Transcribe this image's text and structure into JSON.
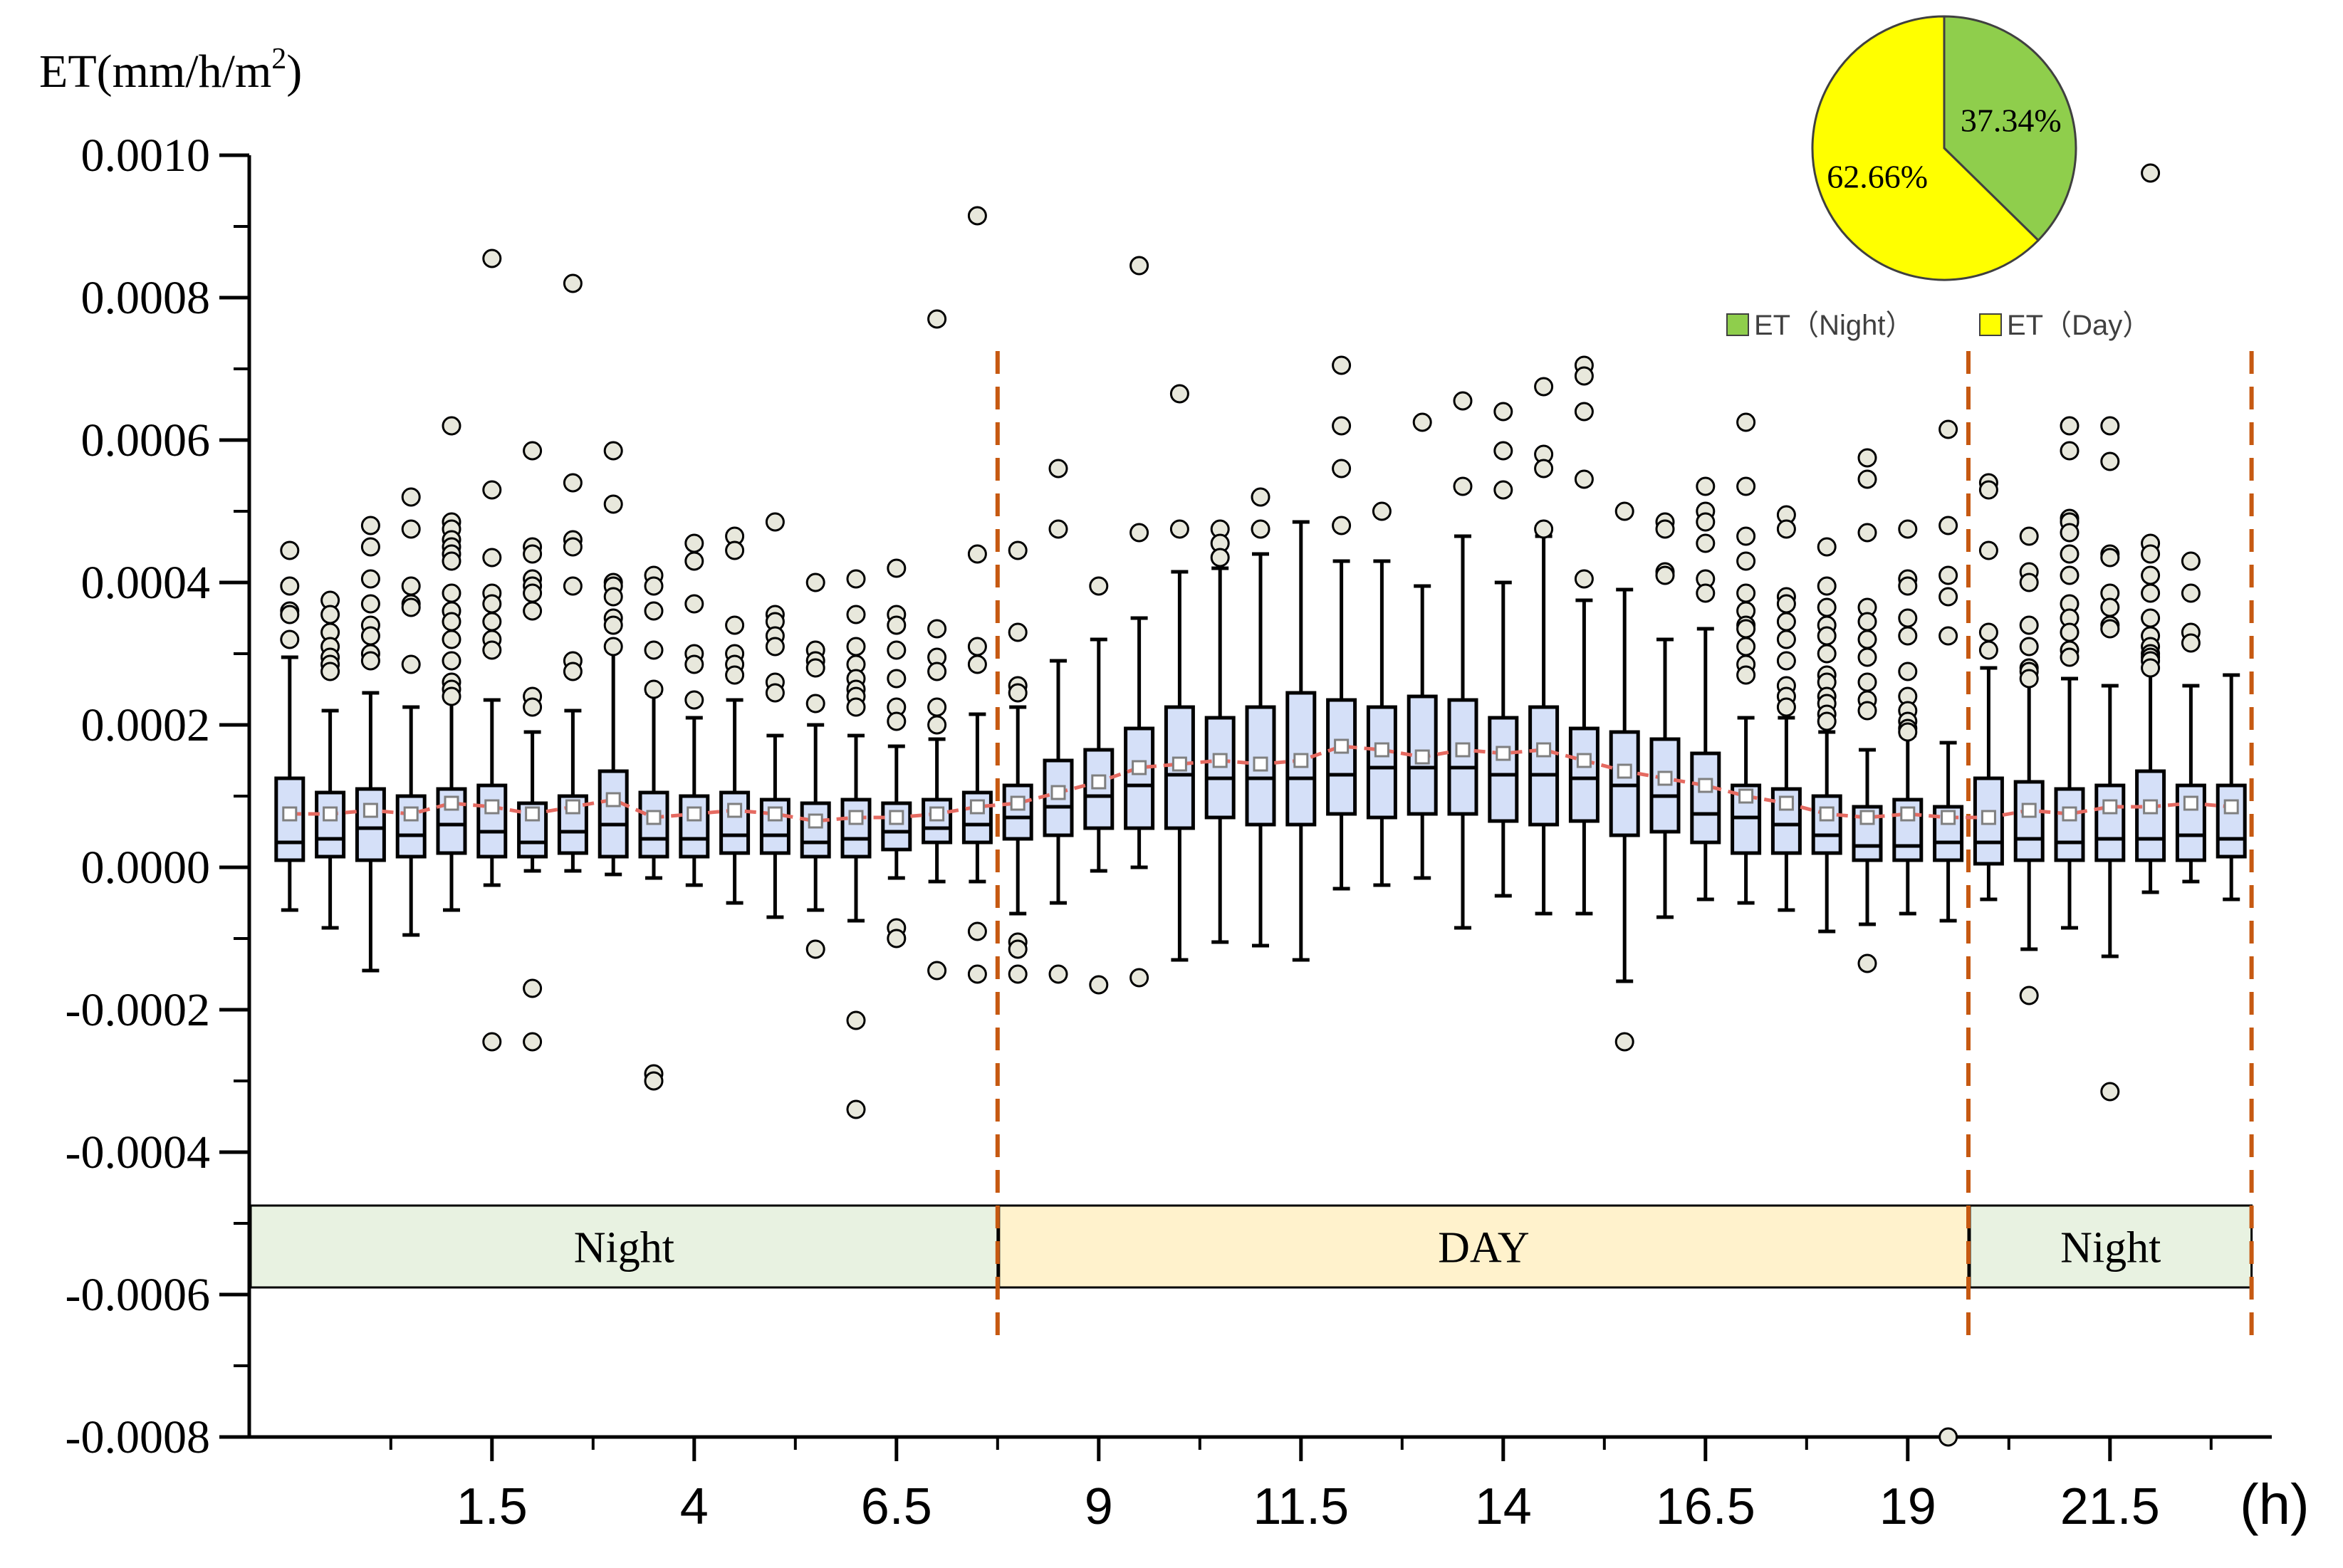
{
  "chart_data": {
    "type": "box",
    "ylabel_prefix": "ET(mm/h/m",
    "ylabel_sup": "2",
    "ylabel_suffix": ")",
    "xunit": "(h)",
    "ylim": [
      -0.0008,
      0.001
    ],
    "yticks": [
      "0.0010",
      "0.0008",
      "0.0006",
      "0.0004",
      "0.0002",
      "0.0000",
      "-0.0002",
      "-0.0004",
      "-0.0006",
      "-0.0008"
    ],
    "ytick_values": [
      0.001,
      0.0008,
      0.0006,
      0.0004,
      0.0002,
      0,
      -0.0002,
      -0.0004,
      -0.0006,
      -0.0008
    ],
    "xlim": [
      -1.5,
      23.5
    ],
    "xticks": [
      "1.5",
      "4",
      "6.5",
      "9",
      "11.5",
      "14",
      "16.5",
      "19",
      "21.5"
    ],
    "xtick_values": [
      1.5,
      4,
      6.5,
      9,
      11.5,
      14,
      16.5,
      19,
      21.5
    ],
    "x": [
      -1,
      -0.5,
      0,
      0.5,
      1,
      1.5,
      2,
      2.5,
      3,
      3.5,
      4,
      4.5,
      5,
      5.5,
      6,
      6.5,
      7,
      7.5,
      8,
      8.5,
      9,
      9.5,
      10,
      10.5,
      11,
      11.5,
      12,
      12.5,
      13,
      13.5,
      14,
      14.5,
      15,
      15.5,
      16,
      16.5,
      17,
      17.5,
      18,
      18.5,
      19,
      19.5,
      20,
      20.5,
      21,
      21.5,
      22,
      22.5,
      23
    ],
    "boxes": [
      {
        "wlo": -6e-05,
        "q1": 1e-05,
        "med": 3.5e-05,
        "q3": 0.000125,
        "whi": 0.000295,
        "mean": 7.5e-05
      },
      {
        "wlo": -8.5e-05,
        "q1": 1.5e-05,
        "med": 4e-05,
        "q3": 0.000105,
        "whi": 0.00022,
        "mean": 7.5e-05
      },
      {
        "wlo": -0.000145,
        "q1": 1e-05,
        "med": 5.5e-05,
        "q3": 0.00011,
        "whi": 0.000245,
        "mean": 8e-05
      },
      {
        "wlo": -9.5e-05,
        "q1": 1.5e-05,
        "med": 4.5e-05,
        "q3": 0.0001,
        "whi": 0.000225,
        "mean": 7.5e-05
      },
      {
        "wlo": -6e-05,
        "q1": 2e-05,
        "med": 6e-05,
        "q3": 0.00011,
        "whi": 0.00024,
        "mean": 9e-05
      },
      {
        "wlo": -2.5e-05,
        "q1": 1.5e-05,
        "med": 5e-05,
        "q3": 0.000115,
        "whi": 0.000235,
        "mean": 8.5e-05
      },
      {
        "wlo": -5e-06,
        "q1": 1.5e-05,
        "med": 3.5e-05,
        "q3": 9e-05,
        "whi": 0.00019,
        "mean": 7.5e-05
      },
      {
        "wlo": -5e-06,
        "q1": 2e-05,
        "med": 5e-05,
        "q3": 0.0001,
        "whi": 0.00022,
        "mean": 8.5e-05
      },
      {
        "wlo": -1e-05,
        "q1": 1.5e-05,
        "med": 6e-05,
        "q3": 0.000135,
        "whi": 0.00031,
        "mean": 9.5e-05
      },
      {
        "wlo": -1.5e-05,
        "q1": 1.5e-05,
        "med": 4e-05,
        "q3": 0.000105,
        "whi": 0.000245,
        "mean": 7e-05
      },
      {
        "wlo": -2.5e-05,
        "q1": 1.5e-05,
        "med": 4e-05,
        "q3": 0.0001,
        "whi": 0.00021,
        "mean": 7.5e-05
      },
      {
        "wlo": -5e-05,
        "q1": 2e-05,
        "med": 4.5e-05,
        "q3": 0.000105,
        "whi": 0.000235,
        "mean": 8e-05
      },
      {
        "wlo": -7e-05,
        "q1": 2e-05,
        "med": 4.5e-05,
        "q3": 9.5e-05,
        "whi": 0.000185,
        "mean": 7.5e-05
      },
      {
        "wlo": -6e-05,
        "q1": 1.5e-05,
        "med": 3.5e-05,
        "q3": 9e-05,
        "whi": 0.0002,
        "mean": 6.5e-05
      },
      {
        "wlo": -7.5e-05,
        "q1": 1.5e-05,
        "med": 4e-05,
        "q3": 9.5e-05,
        "whi": 0.000185,
        "mean": 7e-05
      },
      {
        "wlo": -1.5e-05,
        "q1": 2.5e-05,
        "med": 5e-05,
        "q3": 9e-05,
        "whi": 0.00017,
        "mean": 7e-05
      },
      {
        "wlo": -2e-05,
        "q1": 3.5e-05,
        "med": 5.5e-05,
        "q3": 9.5e-05,
        "whi": 0.00018,
        "mean": 7.5e-05
      },
      {
        "wlo": -2e-05,
        "q1": 3.5e-05,
        "med": 6e-05,
        "q3": 0.000105,
        "whi": 0.000215,
        "mean": 8.5e-05
      },
      {
        "wlo": -6.5e-05,
        "q1": 4e-05,
        "med": 7e-05,
        "q3": 0.000115,
        "whi": 0.000225,
        "mean": 9e-05
      },
      {
        "wlo": -5e-05,
        "q1": 4.5e-05,
        "med": 8.5e-05,
        "q3": 0.00015,
        "whi": 0.00029,
        "mean": 0.000105
      },
      {
        "wlo": -5e-06,
        "q1": 5.5e-05,
        "med": 0.0001,
        "q3": 0.000165,
        "whi": 0.00032,
        "mean": 0.00012
      },
      {
        "wlo": 0.0,
        "q1": 5.5e-05,
        "med": 0.000115,
        "q3": 0.000195,
        "whi": 0.00035,
        "mean": 0.00014
      },
      {
        "wlo": -0.00013,
        "q1": 5.5e-05,
        "med": 0.00013,
        "q3": 0.000225,
        "whi": 0.000415,
        "mean": 0.000145
      },
      {
        "wlo": -0.000105,
        "q1": 7e-05,
        "med": 0.000125,
        "q3": 0.00021,
        "whi": 0.00042,
        "mean": 0.00015
      },
      {
        "wlo": -0.00011,
        "q1": 6e-05,
        "med": 0.000125,
        "q3": 0.000225,
        "whi": 0.00044,
        "mean": 0.000145
      },
      {
        "wlo": -0.00013,
        "q1": 6e-05,
        "med": 0.000125,
        "q3": 0.000245,
        "whi": 0.000485,
        "mean": 0.00015
      },
      {
        "wlo": -3e-05,
        "q1": 7.5e-05,
        "med": 0.00013,
        "q3": 0.000235,
        "whi": 0.00043,
        "mean": 0.00017
      },
      {
        "wlo": -2.5e-05,
        "q1": 7e-05,
        "med": 0.00014,
        "q3": 0.000225,
        "whi": 0.00043,
        "mean": 0.000165
      },
      {
        "wlo": -1.5e-05,
        "q1": 7.5e-05,
        "med": 0.00014,
        "q3": 0.00024,
        "whi": 0.000395,
        "mean": 0.000155
      },
      {
        "wlo": -8.5e-05,
        "q1": 7.5e-05,
        "med": 0.00014,
        "q3": 0.000235,
        "whi": 0.000465,
        "mean": 0.000165
      },
      {
        "wlo": -4e-05,
        "q1": 6.5e-05,
        "med": 0.00013,
        "q3": 0.00021,
        "whi": 0.0004,
        "mean": 0.00016
      },
      {
        "wlo": -6.5e-05,
        "q1": 6e-05,
        "med": 0.00013,
        "q3": 0.000225,
        "whi": 0.000465,
        "mean": 0.000165
      },
      {
        "wlo": -6.5e-05,
        "q1": 6.5e-05,
        "med": 0.000125,
        "q3": 0.000195,
        "whi": 0.000375,
        "mean": 0.00015
      },
      {
        "wlo": -0.00016,
        "q1": 4.5e-05,
        "med": 0.000115,
        "q3": 0.00019,
        "whi": 0.00039,
        "mean": 0.000135
      },
      {
        "wlo": -7e-05,
        "q1": 5e-05,
        "med": 0.0001,
        "q3": 0.00018,
        "whi": 0.00032,
        "mean": 0.000125
      },
      {
        "wlo": -4.5e-05,
        "q1": 3.5e-05,
        "med": 7.5e-05,
        "q3": 0.00016,
        "whi": 0.000335,
        "mean": 0.000115
      },
      {
        "wlo": -5e-05,
        "q1": 2e-05,
        "med": 7e-05,
        "q3": 0.000115,
        "whi": 0.00021,
        "mean": 0.0001
      },
      {
        "wlo": -6e-05,
        "q1": 2e-05,
        "med": 6e-05,
        "q3": 0.00011,
        "whi": 0.00021,
        "mean": 9e-05
      },
      {
        "wlo": -9e-05,
        "q1": 2e-05,
        "med": 4.5e-05,
        "q3": 0.0001,
        "whi": 0.00019,
        "mean": 7.5e-05
      },
      {
        "wlo": -8e-05,
        "q1": 1e-05,
        "med": 3e-05,
        "q3": 8.5e-05,
        "whi": 0.000165,
        "mean": 7e-05
      },
      {
        "wlo": -6.5e-05,
        "q1": 1e-05,
        "med": 3e-05,
        "q3": 9.5e-05,
        "whi": 0.000185,
        "mean": 7.5e-05
      },
      {
        "wlo": -7.5e-05,
        "q1": 1e-05,
        "med": 3.5e-05,
        "q3": 8.5e-05,
        "whi": 0.000175,
        "mean": 7e-05
      },
      {
        "wlo": -4.5e-05,
        "q1": 5e-06,
        "med": 3.5e-05,
        "q3": 0.000125,
        "whi": 0.00028,
        "mean": 7e-05
      },
      {
        "wlo": -0.000115,
        "q1": 1e-05,
        "med": 4e-05,
        "q3": 0.00012,
        "whi": 0.000275,
        "mean": 8e-05
      },
      {
        "wlo": -8.5e-05,
        "q1": 1e-05,
        "med": 3.5e-05,
        "q3": 0.00011,
        "whi": 0.000265,
        "mean": 7.5e-05
      },
      {
        "wlo": -0.000125,
        "q1": 1e-05,
        "med": 4e-05,
        "q3": 0.000115,
        "whi": 0.000255,
        "mean": 8.5e-05
      },
      {
        "wlo": -3.5e-05,
        "q1": 1e-05,
        "med": 4e-05,
        "q3": 0.000135,
        "whi": 0.000305,
        "mean": 8.5e-05
      },
      {
        "wlo": -2e-05,
        "q1": 1e-05,
        "med": 4.5e-05,
        "q3": 0.000115,
        "whi": 0.000255,
        "mean": 9e-05
      },
      {
        "wlo": -4.5e-05,
        "q1": 1.5e-05,
        "med": 4e-05,
        "q3": 0.000115,
        "whi": 0.00027,
        "mean": 8.5e-05
      }
    ],
    "outliers": [
      {
        "i": 0,
        "y": [
          0.000445,
          0.000395,
          0.00036,
          0.000355,
          0.00032
        ]
      },
      {
        "i": 1,
        "y": [
          0.000375,
          0.000355,
          0.00033,
          0.00031,
          0.000295,
          0.000285,
          0.000275
        ]
      },
      {
        "i": 2,
        "y": [
          0.00048,
          0.00045,
          0.000405,
          0.00037,
          0.00034,
          0.000325,
          0.0003,
          0.00029
        ]
      },
      {
        "i": 3,
        "y": [
          0.00052,
          0.000475,
          0.000395,
          0.00037,
          0.000365,
          0.000285
        ]
      },
      {
        "i": 4,
        "y": [
          0.00062,
          0.000485,
          0.000475,
          0.00046,
          0.00045,
          0.00044,
          0.00043,
          0.000385,
          0.00036,
          0.000345,
          0.00032,
          0.00029,
          0.00026,
          0.00025,
          0.00024
        ]
      },
      {
        "i": 5,
        "y": [
          0.000855,
          0.00053,
          0.000435,
          0.000385,
          0.00037,
          0.000345,
          0.00032,
          0.000305,
          -0.000245
        ]
      },
      {
        "i": 6,
        "y": [
          0.000585,
          0.00045,
          0.00044,
          0.000405,
          0.000395,
          0.000385,
          0.00036,
          0.00024,
          0.000225,
          -0.00017,
          -0.000245
        ]
      },
      {
        "i": 7,
        "y": [
          0.00082,
          0.00054,
          0.00046,
          0.00045,
          0.000395,
          0.00029,
          0.000275
        ]
      },
      {
        "i": 8,
        "y": [
          0.000585,
          0.00051,
          0.0004,
          0.000395,
          0.00038,
          0.00035,
          0.00034,
          0.00031
        ]
      },
      {
        "i": 9,
        "y": [
          0.00041,
          0.000395,
          0.00036,
          0.000305,
          0.00025,
          -0.00029,
          -0.0003
        ]
      },
      {
        "i": 10,
        "y": [
          0.000455,
          0.00043,
          0.00037,
          0.0003,
          0.000285,
          0.000235
        ]
      },
      {
        "i": 11,
        "y": [
          0.000465,
          0.000445,
          0.00034,
          0.0003,
          0.000285,
          0.00027
        ]
      },
      {
        "i": 12,
        "y": [
          0.000485,
          0.000355,
          0.000345,
          0.000325,
          0.00031,
          0.00026,
          0.000245
        ]
      },
      {
        "i": 13,
        "y": [
          0.0004,
          0.000305,
          0.00029,
          0.00028,
          0.00023,
          -0.000115
        ]
      },
      {
        "i": 14,
        "y": [
          0.000405,
          0.000355,
          0.00031,
          0.000285,
          0.000265,
          0.00025,
          0.00024,
          0.000225,
          -0.000215,
          -0.00034
        ]
      },
      {
        "i": 15,
        "y": [
          0.00042,
          0.000355,
          0.00034,
          0.000305,
          0.000265,
          0.000225,
          0.000205,
          -8.5e-05,
          -0.0001
        ]
      },
      {
        "i": 16,
        "y": [
          0.00077,
          0.000335,
          0.000295,
          0.000275,
          0.000225,
          0.0002,
          -0.000145
        ]
      },
      {
        "i": 17,
        "y": [
          0.000915,
          0.00044,
          0.00031,
          0.000285,
          -9e-05,
          -0.00015
        ]
      },
      {
        "i": 18,
        "y": [
          0.000445,
          0.00033,
          0.000255,
          0.000245,
          -0.000105,
          -0.000115,
          -0.00015
        ]
      },
      {
        "i": 19,
        "y": [
          0.00056,
          0.000475,
          -0.00015
        ]
      },
      {
        "i": 20,
        "y": [
          0.000395,
          -0.000165
        ]
      },
      {
        "i": 21,
        "y": [
          0.000845,
          0.00047,
          -0.000155
        ]
      },
      {
        "i": 22,
        "y": [
          0.000665,
          0.000475
        ]
      },
      {
        "i": 23,
        "y": [
          0.000475,
          0.000455,
          0.000435
        ]
      },
      {
        "i": 24,
        "y": [
          0.00052,
          0.000475
        ]
      },
      {
        "i": 26,
        "y": [
          0.000705,
          0.00062,
          0.00056,
          0.00048
        ]
      },
      {
        "i": 27,
        "y": [
          0.0005
        ]
      },
      {
        "i": 28,
        "y": [
          0.000625
        ]
      },
      {
        "i": 29,
        "y": [
          0.000655,
          0.000535
        ]
      },
      {
        "i": 30,
        "y": [
          0.00064,
          0.000585,
          0.00053
        ]
      },
      {
        "i": 31,
        "y": [
          0.000675,
          0.00058,
          0.00056,
          0.000475
        ]
      },
      {
        "i": 32,
        "y": [
          0.000705,
          0.00069,
          0.00064,
          0.000545,
          0.000405
        ]
      },
      {
        "i": 33,
        "y": [
          0.0005,
          -0.000245
        ]
      },
      {
        "i": 34,
        "y": [
          0.000485,
          0.000475,
          0.000415,
          0.00041
        ]
      },
      {
        "i": 35,
        "y": [
          0.000535,
          0.0005,
          0.000485,
          0.000455,
          0.000405,
          0.000385
        ]
      },
      {
        "i": 36,
        "y": [
          0.000625,
          0.000535,
          0.000465,
          0.00043,
          0.000385,
          0.00036,
          0.00034,
          0.000335,
          0.00031,
          0.000285,
          0.00027
        ]
      },
      {
        "i": 37,
        "y": [
          0.000495,
          0.000475,
          0.00038,
          0.00037,
          0.000345,
          0.00032,
          0.00029,
          0.000255,
          0.00024,
          0.000225
        ]
      },
      {
        "i": 38,
        "y": [
          0.00045,
          0.000395,
          0.000365,
          0.00034,
          0.000325,
          0.0003,
          0.00027,
          0.00026,
          0.00024,
          0.00023,
          0.000215,
          0.000205
        ]
      },
      {
        "i": 39,
        "y": [
          0.000575,
          0.000545,
          0.00047,
          0.000365,
          0.000345,
          0.00032,
          0.000295,
          0.00026,
          0.000235,
          0.00022,
          -0.000135
        ]
      },
      {
        "i": 40,
        "y": [
          0.000475,
          0.000405,
          0.000395,
          0.00035,
          0.000325,
          0.000275,
          0.00024,
          0.00022,
          0.000205,
          0.000195,
          0.00019
        ]
      },
      {
        "i": 41,
        "y": [
          0.000615,
          0.00048,
          0.00041,
          0.00038,
          0.000325,
          -0.0008
        ]
      },
      {
        "i": 42,
        "y": [
          0.00054,
          0.00053,
          0.000445,
          0.00033,
          0.000305
        ]
      },
      {
        "i": 43,
        "y": [
          0.000465,
          0.000415,
          0.0004,
          0.00034,
          0.00031,
          0.00028,
          0.000275,
          0.000265,
          -0.00018
        ]
      },
      {
        "i": 44,
        "y": [
          0.00062,
          0.000585,
          0.00049,
          0.000485,
          0.00047,
          0.00044,
          0.00041,
          0.00037,
          0.00035,
          0.00033,
          0.000305,
          0.000295
        ]
      },
      {
        "i": 45,
        "y": [
          0.00062,
          0.00057,
          0.00044,
          0.000435,
          0.000385,
          0.000365,
          0.00034,
          0.000335,
          -0.000315
        ]
      },
      {
        "i": 46,
        "y": [
          0.000975,
          0.000455,
          0.00044,
          0.00041,
          0.000385,
          0.00035,
          0.000325,
          0.00031,
          0.0003,
          0.000295,
          0.00029,
          0.00028
        ]
      },
      {
        "i": 47,
        "y": [
          0.00043,
          0.000385,
          0.00033,
          0.000315
        ]
      }
    ],
    "dividers_x": [
      7.75,
      19.75,
      23.25
    ],
    "periods": [
      {
        "label": "Night",
        "x0": -1.5,
        "x1": 7.75,
        "color": "#e8f2e1"
      },
      {
        "label": "DAY",
        "x0": 7.75,
        "x1": 19.75,
        "color": "#fff2cc"
      },
      {
        "label": "Night",
        "x0": 19.75,
        "x1": 23.25,
        "color": "#e8f2e1"
      }
    ],
    "pie": {
      "slices": [
        {
          "label": "ET（Night）",
          "value": 37.34,
          "text": "37.34%",
          "color": "#8fce4c"
        },
        {
          "label": "ET（Day）",
          "value": 62.66,
          "text": "62.66%",
          "color": "#ffff00"
        }
      ]
    },
    "colors": {
      "box_fill": "#d5e0f8",
      "outlier_fill": "#e8e8dc",
      "mean_line": "#e56a61",
      "divider": "#c65911"
    }
  }
}
